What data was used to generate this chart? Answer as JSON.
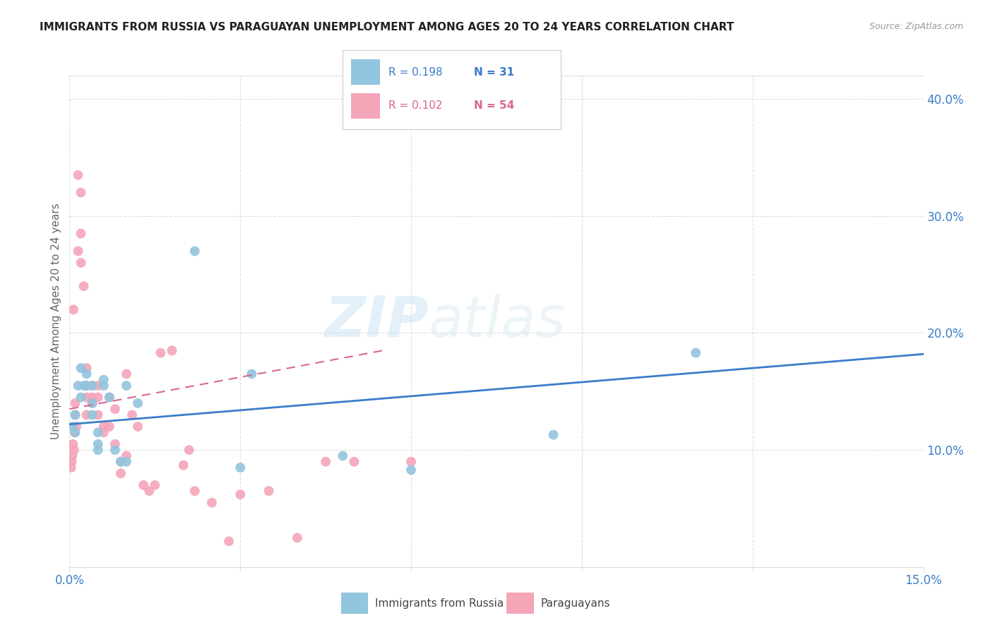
{
  "title": "IMMIGRANTS FROM RUSSIA VS PARAGUAYAN UNEMPLOYMENT AMONG AGES 20 TO 24 YEARS CORRELATION CHART",
  "source": "Source: ZipAtlas.com",
  "ylabel": "Unemployment Among Ages 20 to 24 years",
  "legend1_label": "Immigrants from Russia",
  "legend2_label": "Paraguayans",
  "R1": 0.198,
  "N1": 31,
  "R2": 0.102,
  "N2": 54,
  "color_blue": "#92c5de",
  "color_pink": "#f4a5b8",
  "color_line_blue": "#3a7dc9",
  "color_line_pink": "#d9688a",
  "watermark_zip": "ZIP",
  "watermark_atlas": "atlas",
  "blue_scatter_x": [
    0.0005,
    0.001,
    0.001,
    0.0015,
    0.002,
    0.002,
    0.0025,
    0.003,
    0.003,
    0.003,
    0.004,
    0.004,
    0.004,
    0.005,
    0.005,
    0.005,
    0.006,
    0.006,
    0.007,
    0.008,
    0.009,
    0.01,
    0.01,
    0.012,
    0.022,
    0.03,
    0.032,
    0.048,
    0.06,
    0.085,
    0.11
  ],
  "blue_scatter_y": [
    0.12,
    0.115,
    0.13,
    0.155,
    0.145,
    0.17,
    0.155,
    0.155,
    0.165,
    0.155,
    0.14,
    0.155,
    0.13,
    0.1,
    0.105,
    0.115,
    0.155,
    0.16,
    0.145,
    0.1,
    0.09,
    0.09,
    0.155,
    0.14,
    0.27,
    0.085,
    0.165,
    0.095,
    0.083,
    0.113,
    0.183
  ],
  "pink_scatter_x": [
    0.0003,
    0.0004,
    0.0005,
    0.0006,
    0.0007,
    0.0008,
    0.0009,
    0.001,
    0.001,
    0.0012,
    0.0015,
    0.0015,
    0.002,
    0.002,
    0.002,
    0.0025,
    0.003,
    0.003,
    0.003,
    0.003,
    0.004,
    0.004,
    0.004,
    0.005,
    0.005,
    0.005,
    0.006,
    0.006,
    0.007,
    0.007,
    0.008,
    0.008,
    0.009,
    0.009,
    0.01,
    0.01,
    0.011,
    0.012,
    0.013,
    0.014,
    0.015,
    0.016,
    0.018,
    0.02,
    0.021,
    0.022,
    0.025,
    0.028,
    0.03,
    0.035,
    0.04,
    0.045,
    0.05,
    0.06
  ],
  "pink_scatter_y": [
    0.085,
    0.09,
    0.095,
    0.105,
    0.22,
    0.1,
    0.115,
    0.13,
    0.14,
    0.12,
    0.27,
    0.335,
    0.26,
    0.285,
    0.32,
    0.24,
    0.13,
    0.145,
    0.155,
    0.17,
    0.155,
    0.145,
    0.14,
    0.13,
    0.155,
    0.145,
    0.115,
    0.12,
    0.12,
    0.145,
    0.105,
    0.135,
    0.08,
    0.09,
    0.095,
    0.165,
    0.13,
    0.12,
    0.07,
    0.065,
    0.07,
    0.183,
    0.185,
    0.087,
    0.1,
    0.065,
    0.055,
    0.022,
    0.062,
    0.065,
    0.025,
    0.09,
    0.09,
    0.09
  ],
  "blue_line_x0": 0.0,
  "blue_line_x1": 0.15,
  "blue_line_y0": 0.122,
  "blue_line_y1": 0.182,
  "pink_line_x0": 0.0,
  "pink_line_x1": 0.055,
  "pink_line_y0": 0.135,
  "pink_line_y1": 0.185,
  "xlim": [
    0,
    0.15
  ],
  "ylim": [
    0,
    0.42
  ],
  "x_ticks": [
    0,
    0.03,
    0.06,
    0.09,
    0.12,
    0.15
  ],
  "x_tick_labels": [
    "0.0%",
    "",
    "",
    "",
    "",
    "15.0%"
  ],
  "y_ticks": [
    0.0,
    0.1,
    0.2,
    0.3,
    0.4
  ],
  "y_tick_labels": [
    "",
    "10.0%",
    "20.0%",
    "30.0%",
    "40.0%"
  ],
  "grid_color": "#dddddd",
  "title_color": "#222222",
  "axis_label_color": "#666666",
  "tick_color": "#3a7dc9"
}
